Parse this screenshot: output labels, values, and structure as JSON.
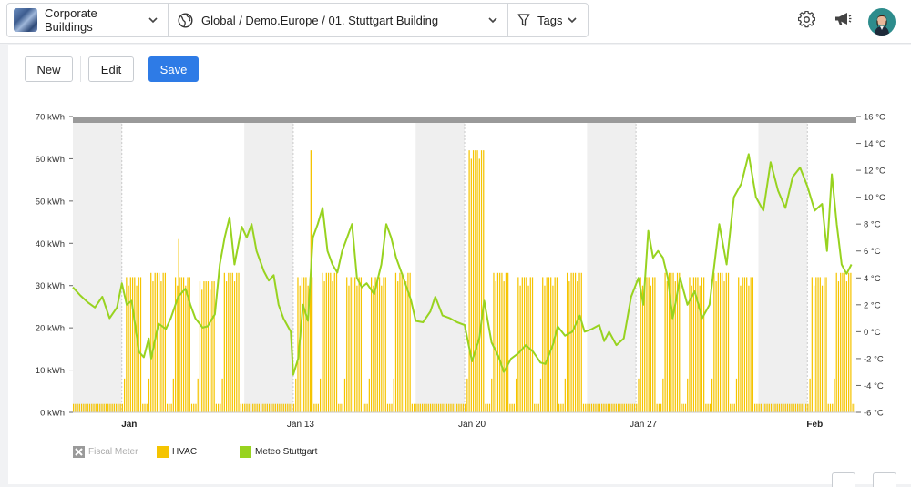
{
  "header": {
    "site_label": "Corporate Buildings",
    "location_path": "Global / Demo.Europe / 01. Stuttgart Building",
    "tags_label": "Tags"
  },
  "toolbar": {
    "new_label": "New",
    "edit_label": "Edit",
    "save_label": "Save"
  },
  "colors": {
    "accent": "#2e7be6",
    "hvac": "#f5c400",
    "meteo": "#98d320",
    "fiscal": "#9a9a9a",
    "weekend_band": "#efefef",
    "top_bar": "#9a9a9a"
  },
  "chart_data": {
    "type": "bar+line",
    "left_axis": {
      "ticks": [
        "0 kWh",
        "10 kWh",
        "20 kWh",
        "30 kWh",
        "40 kWh",
        "50 kWh",
        "60 kWh",
        "70 kWh"
      ],
      "range": [
        0,
        70
      ],
      "unit": "kWh"
    },
    "right_axis": {
      "ticks": [
        "-6 °C",
        "-4 °C",
        "-2 °C",
        "0 °C",
        "2 °C",
        "4 °C",
        "6 °C",
        "8 °C",
        "10 °C",
        "12 °C",
        "14 °C",
        "16 °C"
      ],
      "range": [
        -6,
        16
      ],
      "unit": "°C"
    },
    "x_axis": {
      "range_days": [
        0,
        32
      ],
      "labels": [
        {
          "day": 2.3,
          "text": "Jan",
          "bold": true
        },
        {
          "day": 9.3,
          "text": "Jan 13",
          "bold": false
        },
        {
          "day": 16.3,
          "text": "Jan 20",
          "bold": false
        },
        {
          "day": 23.3,
          "text": "Jan 27",
          "bold": false
        },
        {
          "day": 30.3,
          "text": "Feb",
          "bold": true
        }
      ]
    },
    "weekend_bands_days": [
      [
        0,
        2
      ],
      [
        7,
        9
      ],
      [
        14,
        16
      ],
      [
        21,
        23
      ],
      [
        28,
        30
      ]
    ],
    "series": [
      {
        "name": "Fiscal Meter",
        "type": "bar",
        "constant": 70,
        "disabled": true
      },
      {
        "name": "HVAC",
        "type": "bar",
        "unit": "kWh",
        "hours_per_bar": 2,
        "daily_profile_kWh": [
          2,
          2,
          2,
          2,
          2,
          2,
          2,
          2,
          2,
          2,
          2,
          2,
          2,
          2,
          2,
          2,
          2,
          2,
          2,
          2,
          2,
          2,
          2,
          2,
          2,
          2,
          2,
          2,
          2,
          2,
          2,
          2,
          2,
          2
        ],
        "workday_peak_kWh": [
          32,
          33,
          32,
          31,
          33,
          32,
          33,
          32,
          32,
          33,
          62,
          33,
          32,
          32,
          33,
          32,
          33,
          32,
          33,
          32,
          32,
          33,
          32,
          32,
          33,
          32,
          33,
          32,
          33
        ],
        "note_peaks": [
          {
            "day": 9.7,
            "value": 62
          },
          {
            "day": 4.3,
            "value": 41
          }
        ]
      },
      {
        "name": "Meteo Stuttgart",
        "type": "line",
        "unit": "°C",
        "points": [
          [
            0,
            3.3
          ],
          [
            0.3,
            2.7
          ],
          [
            0.6,
            2.2
          ],
          [
            0.9,
            1.8
          ],
          [
            1.2,
            2.6
          ],
          [
            1.5,
            1.0
          ],
          [
            1.8,
            1.8
          ],
          [
            2.0,
            3.6
          ],
          [
            2.2,
            2.0
          ],
          [
            2.4,
            2.3
          ],
          [
            2.7,
            -1.5
          ],
          [
            2.9,
            -1.9
          ],
          [
            3.1,
            -0.5
          ],
          [
            3.2,
            -2.0
          ],
          [
            3.4,
            -0.2
          ],
          [
            3.5,
            0.6
          ],
          [
            3.8,
            0.2
          ],
          [
            4.0,
            1.0
          ],
          [
            4.3,
            2.6
          ],
          [
            4.6,
            3.2
          ],
          [
            4.8,
            2.0
          ],
          [
            5.0,
            1.0
          ],
          [
            5.3,
            0.3
          ],
          [
            5.5,
            0.4
          ],
          [
            5.8,
            1.3
          ],
          [
            6.0,
            5.0
          ],
          [
            6.2,
            7.0
          ],
          [
            6.4,
            8.5
          ],
          [
            6.6,
            5.0
          ],
          [
            6.9,
            7.8
          ],
          [
            7.1,
            7.0
          ],
          [
            7.3,
            8.0
          ],
          [
            7.5,
            6.0
          ],
          [
            7.8,
            4.5
          ],
          [
            8.0,
            3.8
          ],
          [
            8.2,
            4.2
          ],
          [
            8.4,
            2.0
          ],
          [
            8.6,
            1.0
          ],
          [
            8.9,
            0.0
          ],
          [
            9.0,
            -3.2
          ],
          [
            9.2,
            -2.0
          ],
          [
            9.4,
            2.0
          ],
          [
            9.6,
            0.8
          ],
          [
            9.8,
            7.0
          ],
          [
            10.0,
            8.0
          ],
          [
            10.2,
            9.2
          ],
          [
            10.4,
            6.0
          ],
          [
            10.6,
            5.0
          ],
          [
            10.8,
            4.4
          ],
          [
            11.0,
            6.0
          ],
          [
            11.2,
            7.0
          ],
          [
            11.4,
            8.0
          ],
          [
            11.6,
            4.0
          ],
          [
            11.8,
            3.3
          ],
          [
            12.0,
            3.6
          ],
          [
            12.3,
            2.8
          ],
          [
            12.6,
            5.0
          ],
          [
            12.8,
            8.0
          ],
          [
            13.0,
            7.0
          ],
          [
            13.2,
            5.5
          ],
          [
            13.5,
            4.0
          ],
          [
            13.8,
            2.4
          ],
          [
            14.0,
            0.8
          ],
          [
            14.3,
            0.7
          ],
          [
            14.6,
            1.5
          ],
          [
            14.8,
            2.6
          ],
          [
            15.1,
            1.2
          ],
          [
            15.4,
            1.0
          ],
          [
            15.7,
            0.7
          ],
          [
            16.0,
            0.5
          ],
          [
            16.3,
            -2.2
          ],
          [
            16.6,
            -0.5
          ],
          [
            16.8,
            2.3
          ],
          [
            17.1,
            -0.8
          ],
          [
            17.4,
            -1.9
          ],
          [
            17.6,
            -3.0
          ],
          [
            17.9,
            -2.0
          ],
          [
            18.2,
            -1.6
          ],
          [
            18.5,
            -1.0
          ],
          [
            18.8,
            -1.5
          ],
          [
            19.1,
            -2.3
          ],
          [
            19.3,
            -2.4
          ],
          [
            19.6,
            -1.0
          ],
          [
            19.8,
            0.4
          ],
          [
            20.1,
            -0.3
          ],
          [
            20.4,
            0.0
          ],
          [
            20.7,
            1.2
          ],
          [
            20.9,
            0.0
          ],
          [
            21.2,
            0.2
          ],
          [
            21.5,
            0.5
          ],
          [
            21.7,
            -0.7
          ],
          [
            21.9,
            0.0
          ],
          [
            22.2,
            -1.0
          ],
          [
            22.5,
            -0.5
          ],
          [
            22.8,
            2.6
          ],
          [
            23.1,
            4.0
          ],
          [
            23.3,
            2.0
          ],
          [
            23.5,
            7.5
          ],
          [
            23.7,
            5.5
          ],
          [
            23.9,
            6.0
          ],
          [
            24.1,
            5.5
          ],
          [
            24.3,
            4.0
          ],
          [
            24.5,
            1.0
          ],
          [
            24.8,
            4.0
          ],
          [
            25.1,
            2.0
          ],
          [
            25.4,
            3.0
          ],
          [
            25.7,
            1.0
          ],
          [
            26.0,
            2.0
          ],
          [
            26.4,
            8.0
          ],
          [
            26.7,
            5.0
          ],
          [
            27.0,
            10.0
          ],
          [
            27.3,
            11.0
          ],
          [
            27.6,
            13.2
          ],
          [
            27.9,
            10.0
          ],
          [
            28.2,
            9.0
          ],
          [
            28.5,
            12.6
          ],
          [
            28.8,
            10.5
          ],
          [
            29.1,
            9.2
          ],
          [
            29.4,
            11.5
          ],
          [
            29.7,
            12.2
          ],
          [
            30.0,
            10.8
          ],
          [
            30.3,
            9.0
          ],
          [
            30.6,
            9.5
          ],
          [
            30.8,
            6.0
          ],
          [
            31.0,
            11.7
          ],
          [
            31.2,
            8.0
          ],
          [
            31.4,
            5.0
          ],
          [
            31.6,
            4.3
          ],
          [
            31.8,
            5.0
          ]
        ]
      }
    ],
    "legend": [
      "Fiscal Meter",
      "HVAC",
      "Meteo Stuttgart"
    ],
    "legend_position": "bottom-left"
  }
}
